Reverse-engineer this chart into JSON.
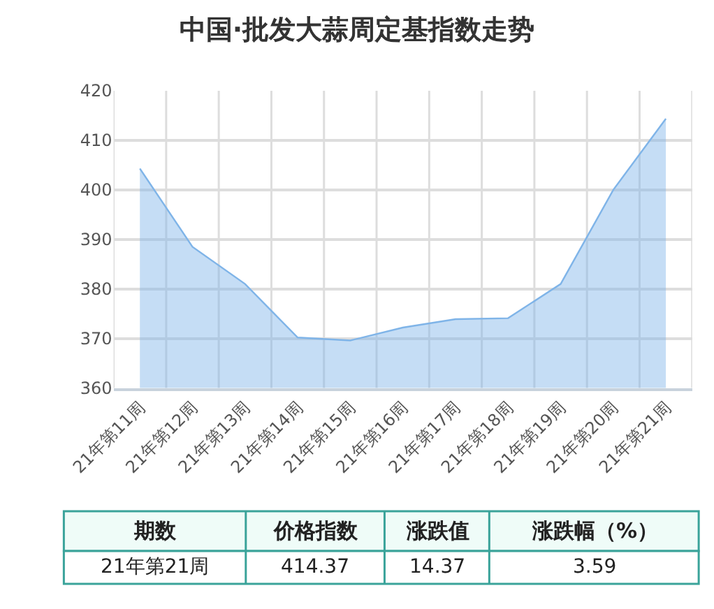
{
  "chart_data": {
    "type": "area",
    "title": "中国·批发大蒜周定基指数走势",
    "categories": [
      "21年第11周",
      "21年第12周",
      "21年第13周",
      "21年第14周",
      "21年第15周",
      "21年第16周",
      "21年第17周",
      "21年第18周",
      "21年第19周",
      "21年第20周",
      "21年第21周"
    ],
    "series": [
      {
        "color": "#7fb4e8",
        "values": [
          404.3,
          388.5,
          381.0,
          370.2,
          369.6,
          372.2,
          373.9,
          374.1,
          381.0,
          400.0,
          414.37
        ]
      }
    ],
    "ylim": [
      360,
      420
    ],
    "yticks": [
      360,
      370,
      380,
      390,
      400,
      410,
      420
    ],
    "grid": true,
    "annotations": [
      "期数",
      "价格指数",
      "涨跌值",
      "涨跌幅（%）",
      "21年第21周",
      "414.37",
      "14.37",
      "3.59"
    ]
  }
}
